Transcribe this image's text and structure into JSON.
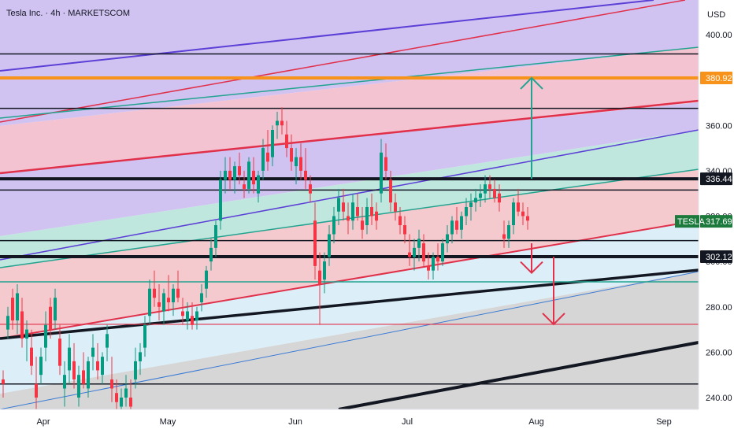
{
  "header": {
    "title": "Tesla Inc. · 4h · MARKETSCOM"
  },
  "price_axis": {
    "currency": "USD"
  },
  "colors": {
    "purple_zone": "#c9b8ee",
    "pink_zone": "#f2b8c9",
    "teal_zone": "#b5e3d8",
    "red_zone": "#f3c1c6",
    "lightblue_zone": "#d6ecf8",
    "gray_zone": "#cfcfcf",
    "bull": "#089981",
    "bear": "#f23645",
    "orange": "#f7931a",
    "purple_line": "#5b3fd6",
    "red_line": "#e0304a",
    "teal_line": "#22a38f",
    "black_line": "#131722",
    "tesla_tag": "#1b7a3c"
  },
  "chart_data": {
    "type": "candlestick",
    "title": "Tesla Inc. · 4h · MARKETSCOM",
    "ylabel": "USD",
    "ylim": [
      230,
      420
    ],
    "y_ticks": [
      240,
      260,
      280,
      300,
      320,
      340,
      360,
      380,
      400
    ],
    "x_ticks": [
      "Apr",
      "May",
      "Jun",
      "Jul",
      "Aug",
      "Sep"
    ],
    "price_tags": [
      {
        "label": "",
        "value": 380.92,
        "color": "#f7931a"
      },
      {
        "label": "",
        "value": 336.44,
        "color": "#131722"
      },
      {
        "label": "TESLA",
        "value": 317.69,
        "color": "#1b7a3c"
      },
      {
        "label": "",
        "value": 302.12,
        "color": "#131722"
      }
    ],
    "horizontal_levels": [
      {
        "value": 391.5,
        "color": "#131722",
        "width": 1.5
      },
      {
        "value": 380.92,
        "color": "#f7931a",
        "width": 4
      },
      {
        "value": 367.5,
        "color": "#131722",
        "width": 1.5
      },
      {
        "value": 336.44,
        "color": "#131722",
        "width": 4
      },
      {
        "value": 331.5,
        "color": "#131722",
        "width": 1.5
      },
      {
        "value": 309.2,
        "color": "#131722",
        "width": 1.5
      },
      {
        "value": 302.12,
        "color": "#131722",
        "width": 4
      },
      {
        "value": 291.0,
        "color": "#22a38f",
        "width": 1.5
      },
      {
        "value": 272.3,
        "color": "#e0304a",
        "width": 1.2
      },
      {
        "value": 246.0,
        "color": "#131722",
        "width": 1.5
      }
    ],
    "series": [
      {
        "name": "",
        "points": [
          [
            0,
            248,
            252,
            240,
            246
          ],
          [
            6,
            270,
            280,
            266,
            276
          ],
          [
            12,
            284,
            288,
            270,
            274
          ],
          [
            18,
            274,
            290,
            268,
            286
          ],
          [
            24,
            278,
            284,
            262,
            266
          ],
          [
            30,
            266,
            274,
            256,
            270
          ],
          [
            36,
            262,
            270,
            250,
            254
          ],
          [
            42,
            246,
            258,
            232,
            240
          ],
          [
            48,
            250,
            262,
            246,
            258
          ],
          [
            54,
            262,
            278,
            256,
            272
          ],
          [
            60,
            280,
            284,
            266,
            270
          ],
          [
            66,
            274,
            288,
            270,
            284
          ],
          [
            72,
            266,
            272,
            250,
            254
          ],
          [
            78,
            244,
            256,
            236,
            250
          ],
          [
            84,
            252,
            268,
            246,
            262
          ],
          [
            90,
            256,
            264,
            244,
            248
          ],
          [
            96,
            240,
            254,
            236,
            250
          ],
          [
            102,
            252,
            260,
            244,
            246
          ],
          [
            108,
            244,
            258,
            240,
            256
          ],
          [
            114,
            258,
            268,
            252,
            262
          ],
          [
            120,
            256,
            264,
            248,
            252
          ],
          [
            126,
            250,
            260,
            246,
            258
          ],
          [
            132,
            262,
            272,
            256,
            268
          ],
          [
            138,
            248,
            258,
            238,
            244
          ],
          [
            144,
            242,
            248,
            234,
            238
          ],
          [
            150,
            236,
            244,
            230,
            240
          ],
          [
            156,
            240,
            250,
            236,
            244
          ],
          [
            162,
            240,
            248,
            232,
            236
          ],
          [
            168,
            248,
            262,
            244,
            256
          ],
          [
            174,
            256,
            264,
            250,
            260
          ],
          [
            180,
            262,
            276,
            258,
            272
          ],
          [
            186,
            276,
            292,
            272,
            288
          ],
          [
            192,
            288,
            296,
            280,
            284
          ],
          [
            198,
            282,
            290,
            274,
            280
          ],
          [
            204,
            278,
            288,
            272,
            286
          ],
          [
            210,
            284,
            294,
            278,
            282
          ],
          [
            216,
            282,
            290,
            276,
            288
          ],
          [
            222,
            288,
            296,
            282,
            284
          ],
          [
            228,
            278,
            284,
            272,
            276
          ],
          [
            234,
            274,
            282,
            270,
            278
          ],
          [
            240,
            276,
            282,
            270,
            272
          ],
          [
            246,
            274,
            280,
            270,
            278
          ],
          [
            252,
            282,
            290,
            278,
            286
          ],
          [
            258,
            288,
            298,
            284,
            296
          ],
          [
            264,
            300,
            310,
            296,
            306
          ],
          [
            270,
            306,
            318,
            302,
            316
          ],
          [
            276,
            318,
            340,
            314,
            336
          ],
          [
            282,
            336,
            346,
            330,
            340
          ],
          [
            288,
            340,
            346,
            332,
            336
          ],
          [
            294,
            336,
            344,
            330,
            342
          ],
          [
            300,
            342,
            348,
            334,
            338
          ],
          [
            306,
            334,
            340,
            328,
            332
          ],
          [
            312,
            332,
            346,
            330,
            344
          ],
          [
            318,
            340,
            346,
            330,
            334
          ],
          [
            324,
            330,
            340,
            326,
            338
          ],
          [
            330,
            340,
            354,
            336,
            350
          ],
          [
            336,
            348,
            358,
            340,
            344
          ],
          [
            342,
            346,
            360,
            342,
            358
          ],
          [
            348,
            360,
            366,
            354,
            362
          ],
          [
            354,
            362,
            368,
            356,
            360
          ],
          [
            360,
            356,
            362,
            346,
            350
          ],
          [
            366,
            350,
            356,
            340,
            344
          ],
          [
            372,
            342,
            350,
            334,
            346
          ],
          [
            378,
            346,
            352,
            336,
            340
          ],
          [
            384,
            340,
            350,
            332,
            336
          ],
          [
            390,
            334,
            338,
            326,
            330
          ],
          [
            396,
            318,
            326,
            292,
            298
          ],
          [
            402,
            296,
            304,
            272,
            290
          ],
          [
            408,
            292,
            304,
            286,
            300
          ],
          [
            414,
            302,
            316,
            298,
            312
          ],
          [
            420,
            312,
            324,
            308,
            320
          ],
          [
            426,
            322,
            332,
            316,
            328
          ],
          [
            432,
            326,
            332,
            318,
            322
          ],
          [
            438,
            320,
            326,
            312,
            318
          ],
          [
            444,
            318,
            330,
            314,
            326
          ],
          [
            450,
            324,
            330,
            318,
            320
          ],
          [
            456,
            318,
            324,
            310,
            314
          ],
          [
            462,
            316,
            328,
            312,
            324
          ],
          [
            468,
            324,
            330,
            316,
            320
          ],
          [
            474,
            322,
            326,
            314,
            318
          ],
          [
            480,
            330,
            354,
            326,
            348
          ],
          [
            486,
            346,
            352,
            336,
            340
          ],
          [
            492,
            336,
            340,
            322,
            326
          ],
          [
            498,
            326,
            330,
            318,
            322
          ],
          [
            504,
            320,
            324,
            312,
            316
          ],
          [
            510,
            316,
            320,
            308,
            312
          ],
          [
            516,
            304,
            312,
            298,
            302
          ],
          [
            522,
            302,
            310,
            296,
            306
          ],
          [
            528,
            306,
            314,
            300,
            310
          ],
          [
            534,
            308,
            312,
            298,
            300
          ],
          [
            540,
            298,
            304,
            292,
            296
          ],
          [
            546,
            296,
            304,
            292,
            302
          ],
          [
            552,
            302,
            308,
            296,
            300
          ],
          [
            558,
            300,
            310,
            298,
            308
          ],
          [
            564,
            308,
            316,
            304,
            312
          ],
          [
            570,
            312,
            320,
            308,
            318
          ],
          [
            576,
            318,
            324,
            312,
            314
          ],
          [
            582,
            314,
            322,
            310,
            320
          ],
          [
            588,
            320,
            328,
            316,
            324
          ],
          [
            594,
            324,
            330,
            318,
            326
          ],
          [
            600,
            326,
            332,
            322,
            328
          ],
          [
            606,
            328,
            334,
            324,
            330
          ],
          [
            612,
            330,
            338,
            326,
            334
          ],
          [
            618,
            334,
            338,
            328,
            332
          ],
          [
            624,
            332,
            336,
            326,
            328
          ],
          [
            630,
            330,
            334,
            322,
            326
          ],
          [
            636,
            312,
            318,
            306,
            310
          ],
          [
            642,
            310,
            318,
            306,
            316
          ],
          [
            648,
            316,
            328,
            312,
            326
          ],
          [
            654,
            326,
            332,
            320,
            322
          ],
          [
            660,
            322,
            326,
            316,
            320
          ],
          [
            666,
            320,
            324,
            314,
            318
          ]
        ]
      }
    ],
    "annotations": [
      {
        "type": "arrow-up",
        "color": "#22a38f",
        "from": 336.44,
        "to": 380.92
      },
      {
        "type": "arrow-down",
        "color": "#e0304a",
        "from": 308,
        "to": 295
      },
      {
        "type": "arrow-down",
        "color": "#e0304a",
        "from": 302.12,
        "to": 272.3
      }
    ]
  }
}
